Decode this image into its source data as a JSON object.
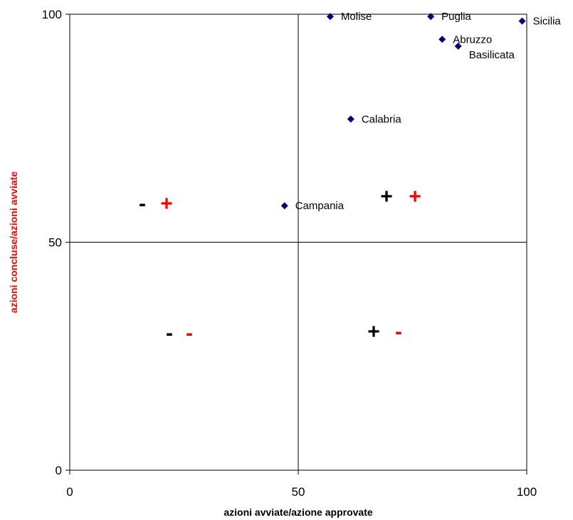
{
  "chart_data": {
    "type": "scatter",
    "xlabel": "azioni avviate/azione approvate",
    "ylabel": "azioni concluse/azioni avviate",
    "xlim": [
      0,
      100
    ],
    "ylim": [
      0,
      100
    ],
    "x_ticks": [
      "0",
      "50",
      "100"
    ],
    "y_ticks": [
      "0",
      "50",
      "100"
    ],
    "grid": false,
    "reference_lines": {
      "x": 50,
      "y": 50
    },
    "marker_color": "#00007f",
    "xlabel_color": "#000000",
    "ylabel_color": "#ff0000",
    "points": [
      {
        "label": "Molise",
        "x": 57,
        "y": 99.5
      },
      {
        "label": "Puglia",
        "x": 79,
        "y": 99.5
      },
      {
        "label": "Sicilia",
        "x": 99,
        "y": 98.5
      },
      {
        "label": "Abruzzo",
        "x": 81.5,
        "y": 94.5
      },
      {
        "label": "Basilicata",
        "x": 85,
        "y": 93
      },
      {
        "label": "Calabria",
        "x": 61.5,
        "y": 77
      },
      {
        "label": "Campania",
        "x": 47,
        "y": 58
      }
    ],
    "quadrant_marks": [
      {
        "first": "-",
        "first_color": "#000000",
        "second": "+",
        "second_color": "#ff0000"
      },
      {
        "first": "+",
        "first_color": "#000000",
        "second": "+",
        "second_color": "#ff0000"
      },
      {
        "first": "-",
        "first_color": "#000000",
        "second": "-",
        "second_color": "#ff0000"
      },
      {
        "first": "+",
        "first_color": "#000000",
        "second": "-",
        "second_color": "#ff0000"
      }
    ]
  }
}
